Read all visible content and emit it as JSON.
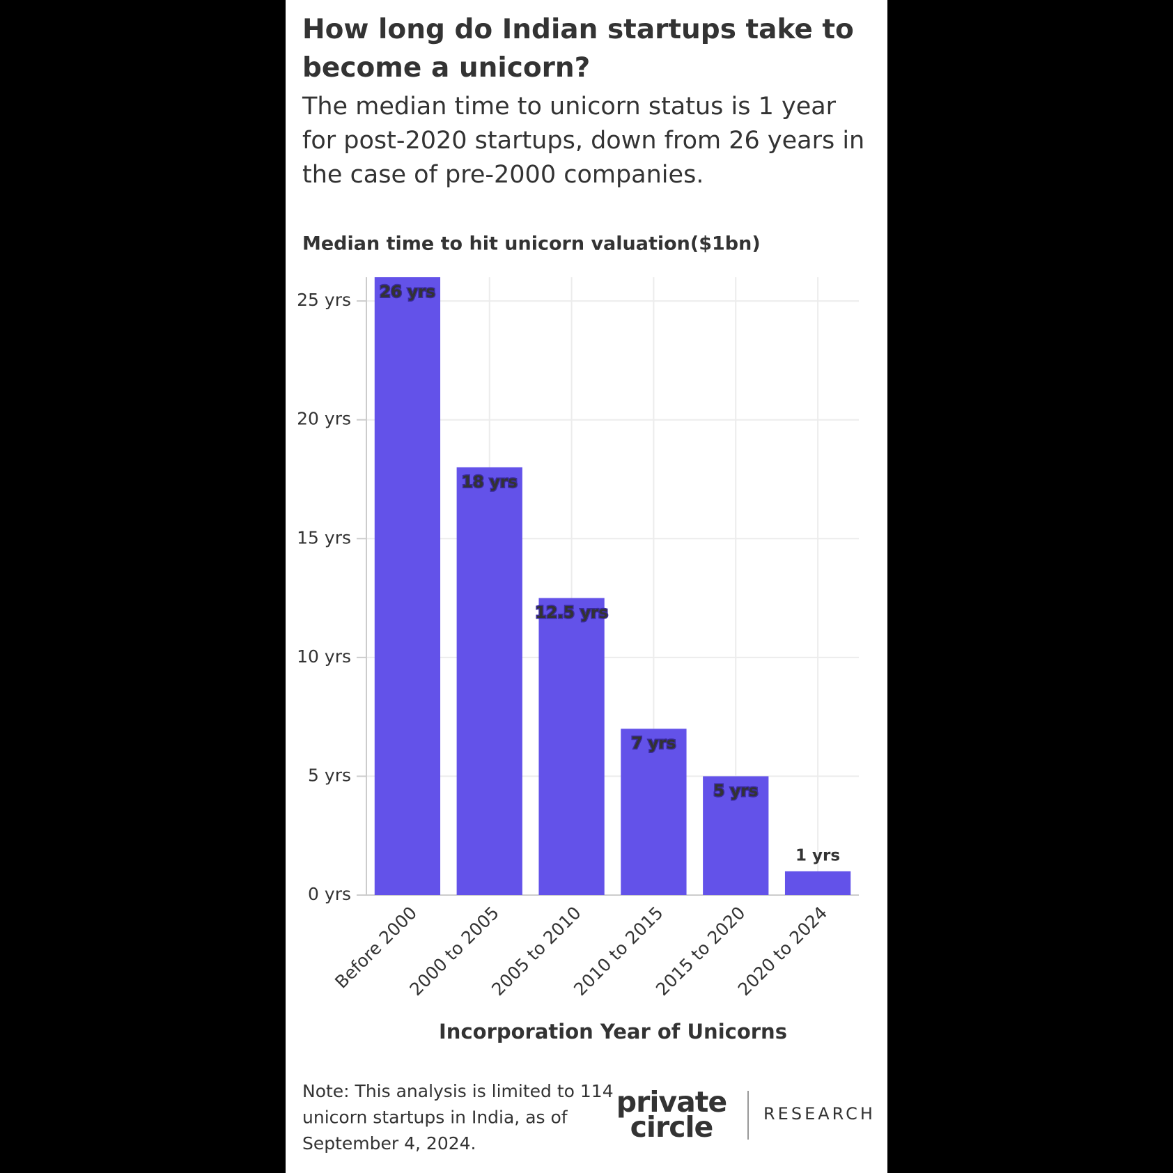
{
  "chart_data": {
    "type": "bar",
    "title": "How long do Indian startups take to become a unicorn?",
    "subtitle": "The median time to unicorn status is 1 year for post-2020 startups, down from 26 years in the case of pre-2000 companies.",
    "y_axis_title": "Median time to hit unicorn valuation($1bn)",
    "x_axis_title": "Incorporation Year of Unicorns",
    "categories": [
      "Before 2000",
      "2000 to 2005",
      "2005 to 2010",
      "2010 to 2015",
      "2015 to 2020",
      "2020 to 2024"
    ],
    "values": [
      26,
      18,
      12.5,
      7,
      5,
      1
    ],
    "value_labels": [
      "26 yrs",
      "18 yrs",
      "12.5 yrs",
      "7 yrs",
      "5 yrs",
      "1 yrs"
    ],
    "color": "#6352e9",
    "ylim": [
      0,
      26
    ],
    "yticks": [
      {
        "value": 0,
        "label": "0 yrs"
      },
      {
        "value": 5,
        "label": "5 yrs"
      },
      {
        "value": 10,
        "label": "10 yrs"
      },
      {
        "value": 15,
        "label": "15 yrs"
      },
      {
        "value": 20,
        "label": "20 yrs"
      },
      {
        "value": 25,
        "label": "25 yrs"
      }
    ],
    "grid": true,
    "note": [
      "Note: This analysis is limited to 114",
      "unicorn startups in India, as of",
      "September 4, 2024."
    ],
    "logo": [
      "private",
      "circle"
    ],
    "logo_sub": "RESEARCH"
  }
}
